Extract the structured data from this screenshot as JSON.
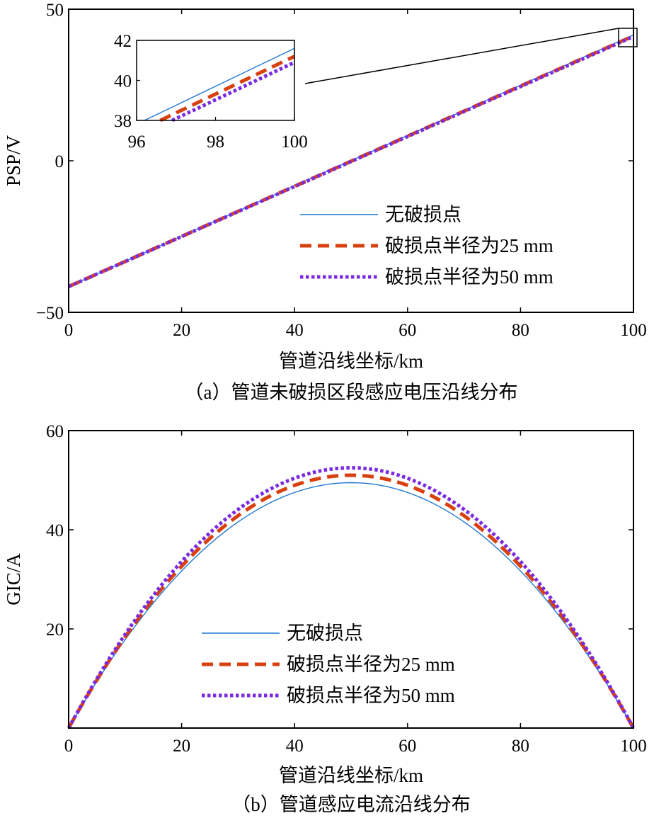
{
  "chart_data": [
    {
      "type": "line",
      "caption": "（a）管道未破损区段感应电压沿线分布",
      "xlabel": "管道沿线坐标/km",
      "ylabel": "PSP/V",
      "xlim": [
        0,
        100
      ],
      "ylim": [
        -50,
        50
      ],
      "xticks": [
        0,
        20,
        40,
        60,
        80,
        100
      ],
      "yticks": [
        -50,
        0,
        50
      ],
      "legend_position": "lower-right",
      "series": [
        {
          "name": "无破损点",
          "color": "#1f77d4",
          "style": "solid",
          "x": [
            0,
            100
          ],
          "y": [
            -41.5,
            41.5
          ]
        },
        {
          "name": "破损点半径为25 mm",
          "color": "#d8400f",
          "style": "dashed",
          "x": [
            0,
            100
          ],
          "y": [
            -41.5,
            41.2
          ]
        },
        {
          "name": "破损点半径为50 mm",
          "color": "#7a2be0",
          "style": "dotted",
          "x": [
            0,
            100
          ],
          "y": [
            -41.5,
            41.0
          ]
        }
      ],
      "inset": {
        "xlim": [
          96,
          100
        ],
        "ylim": [
          38,
          42
        ],
        "xticks": [
          96,
          98,
          100
        ],
        "yticks": [
          38,
          40,
          42
        ],
        "series": [
          {
            "name": "无破损点",
            "x": [
              96.2,
              100
            ],
            "y": [
              38.0,
              41.6
            ]
          },
          {
            "name": "破损点半径为25 mm",
            "x": [
              96.6,
              100
            ],
            "y": [
              38.0,
              41.2
            ]
          },
          {
            "name": "破损点半径为50 mm",
            "x": [
              96.9,
              100
            ],
            "y": [
              38.0,
              40.9
            ]
          }
        ]
      }
    },
    {
      "type": "line",
      "caption": "（b）管道感应电流沿线分布",
      "xlabel": "管道沿线坐标/km",
      "ylabel": "GIC/A",
      "xlim": [
        0,
        100
      ],
      "ylim": [
        0,
        60
      ],
      "xticks": [
        0,
        20,
        40,
        60,
        80,
        100
      ],
      "yticks": [
        20,
        40,
        60
      ],
      "ytick_origin_label": "0",
      "legend_position": "lower-center",
      "series": [
        {
          "name": "无破损点",
          "color": "#1f77d4",
          "style": "solid",
          "shape": "parabola",
          "x0": 0,
          "x1": 100,
          "peak": 49.5
        },
        {
          "name": "破损点半径为25 mm",
          "color": "#d8400f",
          "style": "dashed",
          "shape": "parabola",
          "x0": 0,
          "x1": 100,
          "peak": 51.0
        },
        {
          "name": "破损点半径为50 mm",
          "color": "#7a2be0",
          "style": "dotted",
          "shape": "parabola",
          "x0": 0,
          "x1": 100,
          "peak": 52.5
        }
      ]
    }
  ]
}
